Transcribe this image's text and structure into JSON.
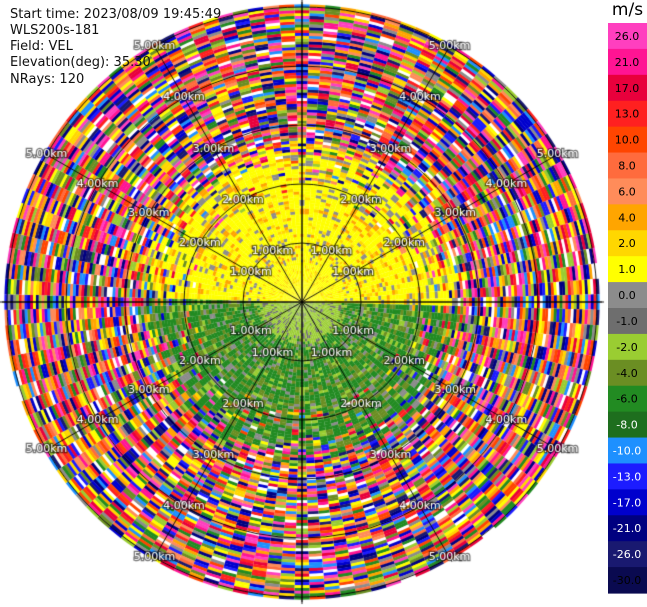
{
  "header": {
    "start_time": "Start time: 2023/08/09 19:45:49",
    "instrument": "WLS200s-181",
    "field": "Field: VEL",
    "elevation": "Elevation(deg): 35.30",
    "nrays": "NRays: 120"
  },
  "ppi": {
    "ring_labels": [
      "1.00km",
      "2.00km",
      "3.00km",
      "4.00km",
      "5.00km"
    ],
    "spoke_angles_deg": [
      0,
      30,
      60,
      90,
      120,
      150,
      180,
      210,
      240,
      270,
      300,
      330
    ],
    "label_azimuths_deg": [
      30,
      60,
      120,
      150,
      210,
      240,
      300,
      330
    ]
  },
  "colorbar": {
    "title": "m/s",
    "ticks": [
      "26.0",
      "21.0",
      "17.0",
      "13.0",
      "10.0",
      "8.0",
      "6.0",
      "4.0",
      "2.0",
      "1.0",
      "0.0",
      "-1.0",
      "-2.0",
      "-4.0",
      "-6.0",
      "-8.0",
      "-10.0",
      "-13.0",
      "-17.0",
      "-21.0",
      "-26.0",
      "-30.0"
    ],
    "colors": [
      "#ff3fbf",
      "#ff1493",
      "#e8003c",
      "#ff2020",
      "#ff4500",
      "#ff6b3d",
      "#ff8c5a",
      "#ffa500",
      "#ffd700",
      "#ffff00",
      "#8c8c8c",
      "#6e6e6e",
      "#9acd32",
      "#6b8e23",
      "#228b22",
      "#1e6e1e",
      "#1e90ff",
      "#1c1cff",
      "#0000cd",
      "#000080",
      "#191970",
      "#0a0a50"
    ]
  }
}
